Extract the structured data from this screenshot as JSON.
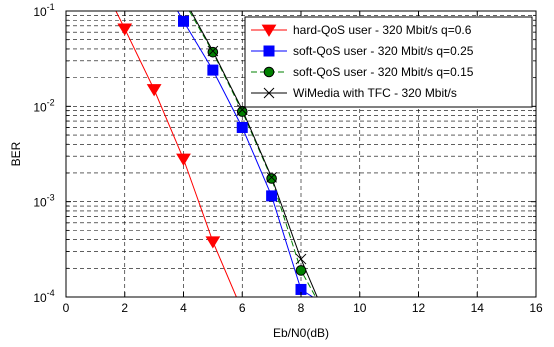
{
  "chart_data": {
    "type": "line",
    "xlabel": "Eb/N0(dB)",
    "ylabel": "BER",
    "xlim": [
      0,
      16
    ],
    "ylim": [
      0.0001,
      0.1
    ],
    "yscale": "log",
    "grid": true,
    "legend_position": "top-right",
    "x_ticks": [
      0,
      2,
      4,
      6,
      8,
      10,
      12,
      14,
      16
    ],
    "y_ticks": [
      {
        "value": 0.1,
        "base": "10",
        "exp": "-1"
      },
      {
        "value": 0.01,
        "base": "10",
        "exp": "-2"
      },
      {
        "value": 0.001,
        "base": "10",
        "exp": "-3"
      },
      {
        "value": 0.0001,
        "base": "10",
        "exp": "-4"
      }
    ],
    "series": [
      {
        "name": "hard-QoS user - 320 Mbit/s q=0.6",
        "color": "#ff0000",
        "marker": "triangle-down",
        "line_style": "solid",
        "x": [
          1.7,
          2,
          3,
          4,
          5,
          5.8
        ],
        "y": [
          0.1,
          0.065,
          0.015,
          0.0028,
          0.00038,
          0.0001
        ],
        "markers_x": [
          2,
          3,
          4,
          5
        ],
        "markers_y": [
          0.065,
          0.015,
          0.0028,
          0.00038
        ]
      },
      {
        "name": "soft-QoS user - 320 Mbit/s q=0.25",
        "color": "#0000ff",
        "marker": "square",
        "line_style": "solid",
        "x": [
          3.8,
          4,
          5,
          6,
          7,
          8,
          8.4
        ],
        "y": [
          0.1,
          0.078,
          0.024,
          0.006,
          0.00115,
          0.00012,
          0.0001
        ],
        "markers_x": [
          4,
          5,
          6,
          7,
          8
        ],
        "markers_y": [
          0.078,
          0.024,
          0.006,
          0.00115,
          0.00012
        ]
      },
      {
        "name": "soft-QoS user - 320 Mbit/s q=0.15",
        "color": "#008000",
        "marker": "circle",
        "line_style": "dashed",
        "x": [
          4.2,
          5,
          6,
          7,
          8,
          8.5
        ],
        "y": [
          0.1,
          0.037,
          0.0088,
          0.00175,
          0.00019,
          0.0001
        ],
        "markers_x": [
          5,
          6,
          7,
          8
        ],
        "markers_y": [
          0.037,
          0.0088,
          0.00175,
          0.00019
        ]
      },
      {
        "name": "WiMedia with TFC - 320 Mbit/s",
        "color": "#000000",
        "marker": "x",
        "line_style": "solid",
        "x": [
          4.25,
          5,
          6,
          7,
          8,
          8.55
        ],
        "y": [
          0.1,
          0.038,
          0.0092,
          0.0018,
          0.00025,
          0.0001
        ],
        "markers_x": [
          5,
          6,
          7,
          8
        ],
        "markers_y": [
          0.038,
          0.0092,
          0.0018,
          0.00025
        ]
      }
    ]
  }
}
